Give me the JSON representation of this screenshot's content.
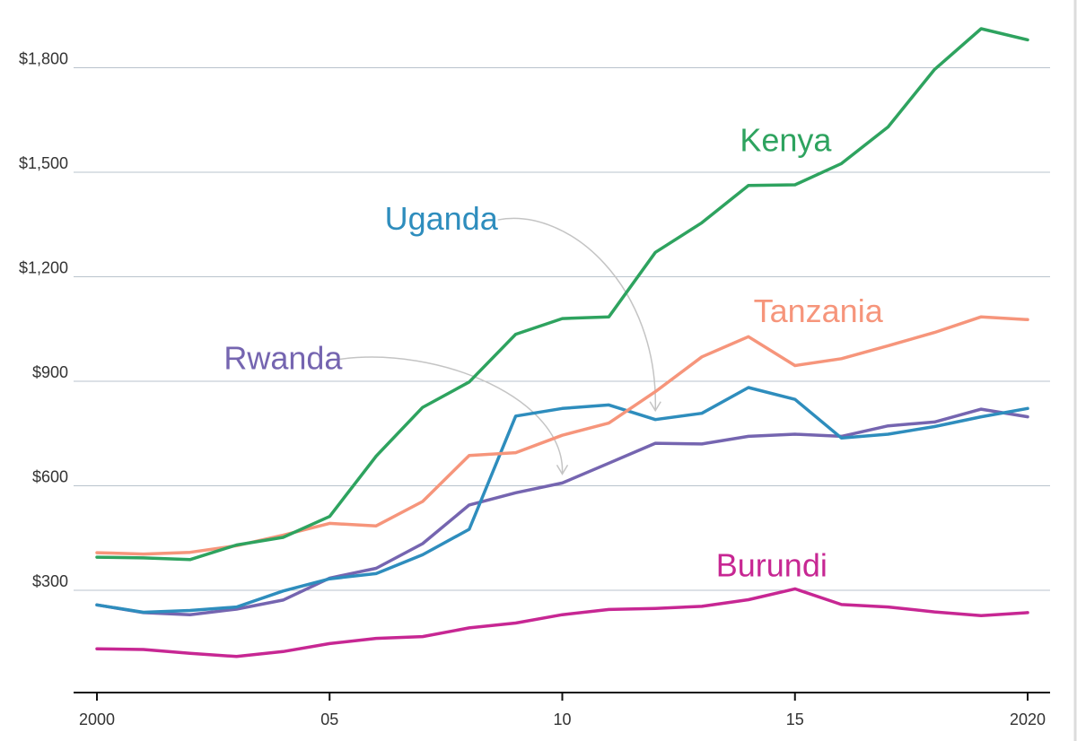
{
  "chart_data": {
    "type": "line",
    "title": "",
    "xlabel": "",
    "ylabel": "",
    "x": [
      2000,
      2001,
      2002,
      2003,
      2004,
      2005,
      2006,
      2007,
      2008,
      2009,
      2010,
      2011,
      2012,
      2013,
      2014,
      2015,
      2016,
      2017,
      2018,
      2019,
      2020
    ],
    "x_ticks": [
      {
        "value": 2000,
        "label": "2000"
      },
      {
        "value": 2005,
        "label": "05"
      },
      {
        "value": 2010,
        "label": "10"
      },
      {
        "value": 2015,
        "label": "15"
      },
      {
        "value": 2020,
        "label": "2020"
      }
    ],
    "y_ticks": [
      {
        "value": 300,
        "label": "$300"
      },
      {
        "value": 600,
        "label": "$600"
      },
      {
        "value": 900,
        "label": "$900"
      },
      {
        "value": 1200,
        "label": "$1,200"
      },
      {
        "value": 1500,
        "label": "$1,500"
      },
      {
        "value": 1800,
        "label": "$1,800"
      }
    ],
    "ylim": [
      0,
      1920
    ],
    "xlim": [
      1999.5,
      2020.5
    ],
    "grid": true,
    "legend": "none",
    "series": [
      {
        "name": "Kenya",
        "color": "#2ea35f",
        "values": [
          395,
          393,
          388,
          430,
          452,
          512,
          685,
          825,
          898,
          1035,
          1080,
          1085,
          1270,
          1355,
          1462,
          1464,
          1525,
          1630,
          1795,
          1912,
          1880
        ]
      },
      {
        "name": "Tanzania",
        "color": "#f6957b",
        "values": [
          408,
          404,
          409,
          428,
          458,
          492,
          485,
          555,
          687,
          695,
          745,
          780,
          870,
          970,
          1028,
          945,
          965,
          1002,
          1040,
          1085,
          1077
        ]
      },
      {
        "name": "Uganda",
        "color": "#2e8dbd",
        "values": [
          258,
          237,
          242,
          252,
          298,
          333,
          348,
          402,
          475,
          800,
          822,
          832,
          790,
          808,
          882,
          848,
          737,
          748,
          770,
          798,
          822
        ]
      },
      {
        "name": "Rwanda",
        "color": "#7565b0",
        "values": [
          258,
          236,
          230,
          246,
          272,
          335,
          363,
          434,
          545,
          580,
          608,
          665,
          722,
          720,
          742,
          748,
          742,
          772,
          783,
          820,
          798
        ]
      },
      {
        "name": "Burundi",
        "color": "#c72793",
        "values": [
          132,
          130,
          119,
          110,
          124,
          147,
          162,
          167,
          192,
          206,
          230,
          245,
          248,
          254,
          273,
          304,
          259,
          252,
          238,
          227,
          236
        ]
      }
    ],
    "annotations": [
      {
        "series": "Kenya",
        "text": "Kenya",
        "x": 2014.8,
        "y": 1560,
        "anchor": "middle",
        "pointer": false
      },
      {
        "series": "Tanzania",
        "text": "Tanzania",
        "x": 2015.5,
        "y": 1070,
        "anchor": "middle",
        "pointer": false
      },
      {
        "series": "Uganda",
        "text": "Uganda",
        "x": 2007.4,
        "y": 1335,
        "anchor": "middle",
        "pointer": true,
        "pointer_to": {
          "x": 2012,
          "y": 790
        }
      },
      {
        "series": "Rwanda",
        "text": "Rwanda",
        "x": 2004.0,
        "y": 935,
        "anchor": "middle",
        "pointer": true,
        "pointer_to": {
          "x": 2010,
          "y": 608
        }
      },
      {
        "series": "Burundi",
        "text": "Burundi",
        "x": 2014.5,
        "y": 340,
        "anchor": "middle",
        "pointer": false
      }
    ]
  }
}
